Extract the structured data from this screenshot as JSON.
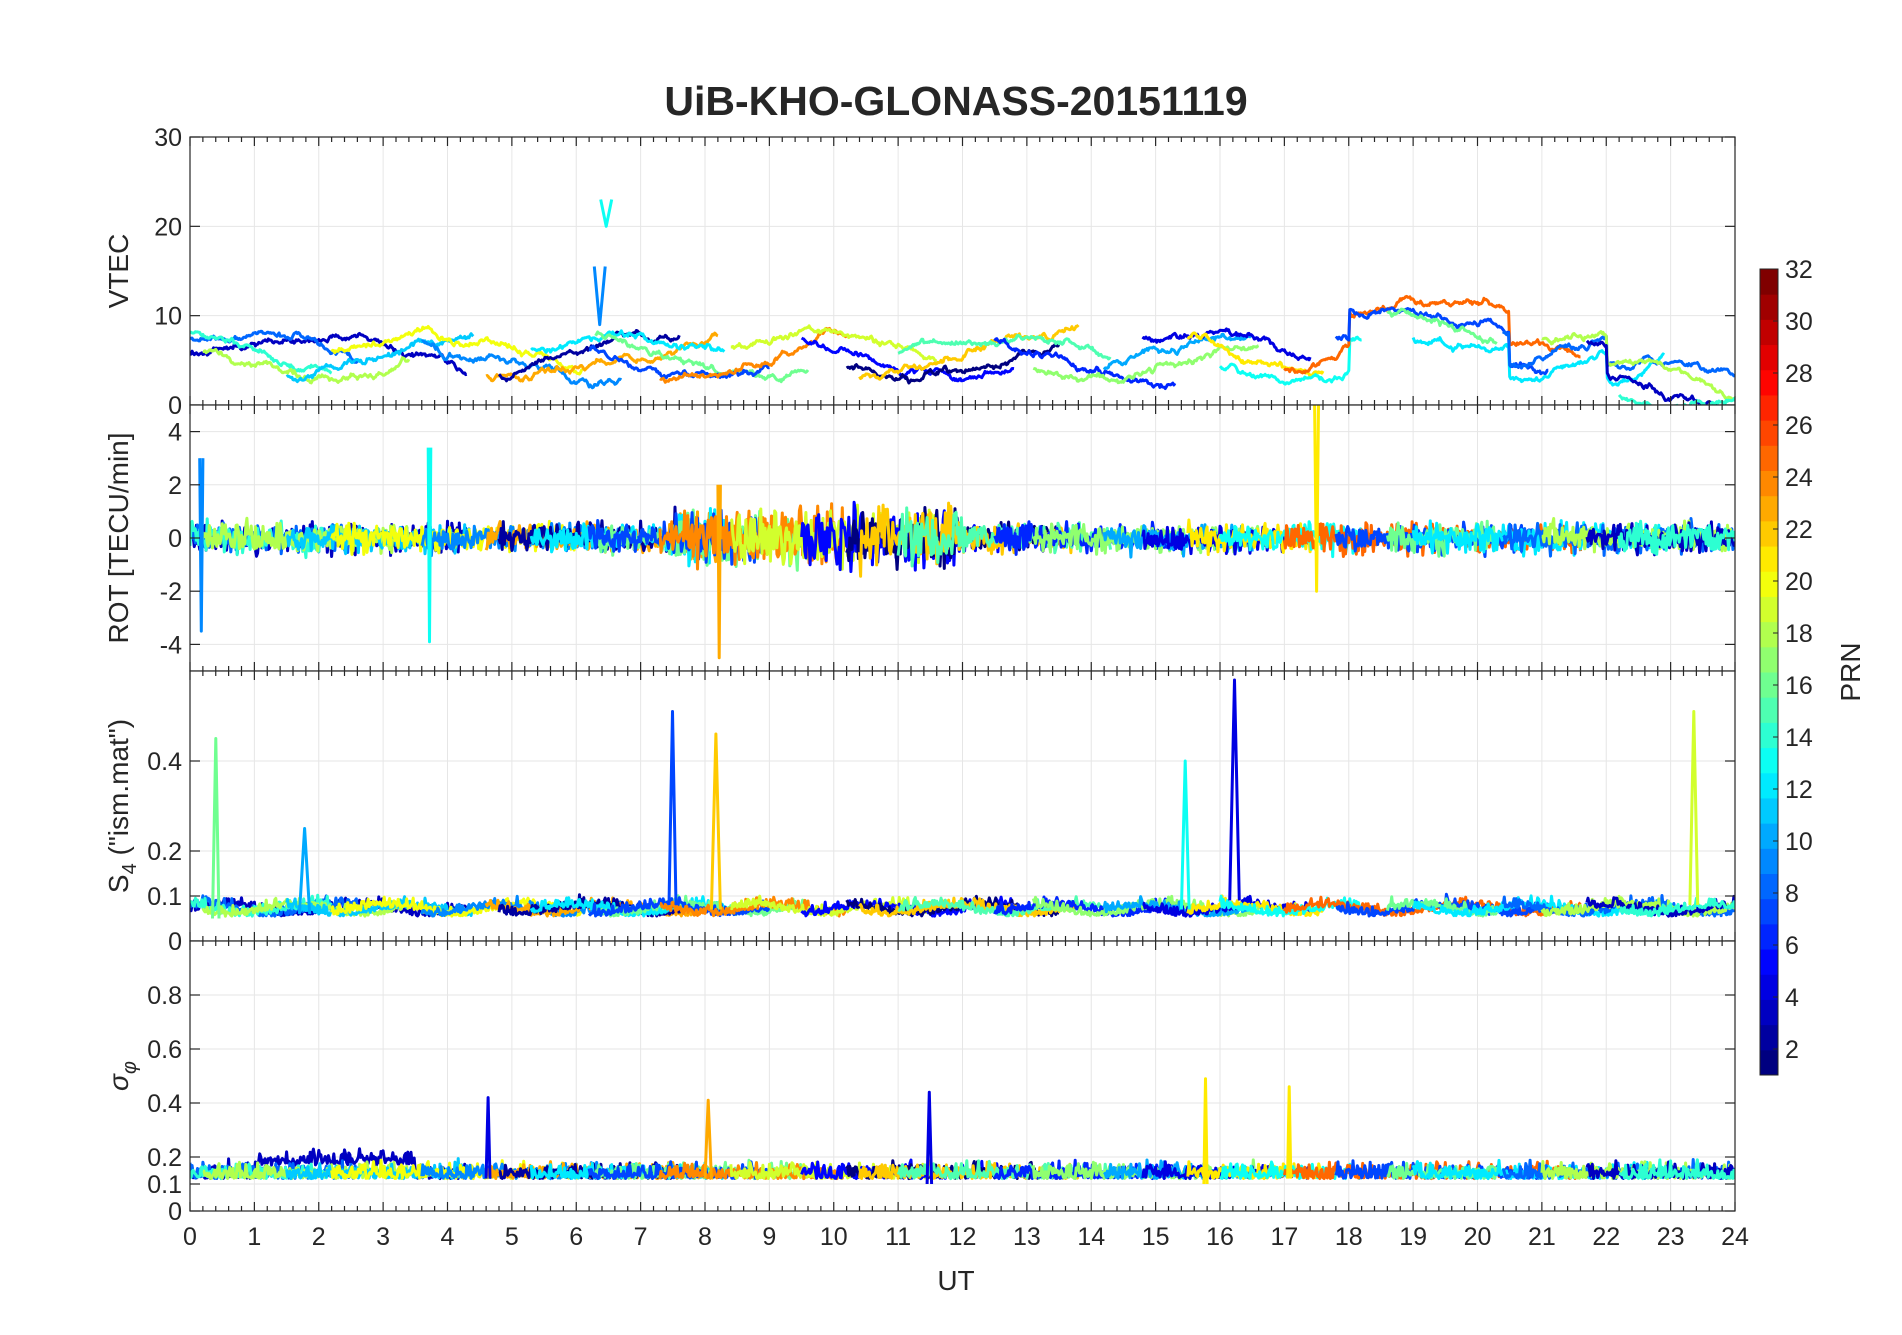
{
  "chart_data": {
    "type": "line",
    "title": "UiB-KHO-GLONASS-20151119",
    "xlabel": "UT",
    "xlim": [
      0,
      24
    ],
    "x_ticks": [
      "0",
      "1",
      "2",
      "3",
      "4",
      "5",
      "6",
      "7",
      "8",
      "9",
      "10",
      "11",
      "12",
      "13",
      "14",
      "15",
      "16",
      "17",
      "18",
      "19",
      "20",
      "21",
      "22",
      "23",
      "24"
    ],
    "grid": true,
    "colorbar": {
      "label": "PRN",
      "range": [
        1,
        32
      ],
      "ticks": [
        "2",
        "4",
        "6",
        "8",
        "10",
        "12",
        "14",
        "16",
        "18",
        "20",
        "22",
        "24",
        "26",
        "28",
        "30",
        "32"
      ],
      "colormap": "jet",
      "placement": "right"
    },
    "panels": [
      {
        "ylabel": "VTEC",
        "ylim": [
          0,
          30
        ],
        "y_ticks": [
          "0",
          "10",
          "20",
          "30"
        ],
        "series_summary": "Per-satellite VTEC traces mostly between 2 and 12; spike near UT 6.4 reaching ~23; values rise to ~12 near UT 19 and fall to ~1–4 after UT 22."
      },
      {
        "ylabel": "ROT [TECU/min]",
        "ylim": [
          -5,
          5
        ],
        "y_ticks": [
          "-4",
          "-2",
          "0",
          "2",
          "4"
        ],
        "series_summary": "Rate of TEC mostly within ±2 TECU/min; excursions to -4.5 near UT 8.2, -3.9 near UT 3.7, +5 near UT 17.5."
      },
      {
        "ylabel_main": "S",
        "ylabel_sub": "4",
        "ylabel_rest": " (\"ism.mat\")",
        "ylim": [
          0,
          0.6
        ],
        "y_ticks": [
          "0",
          "0.1",
          "0.2",
          "0.4"
        ],
        "series_summary": "S4 mostly 0.04–0.12; peaks ~0.45 at UT 0.4, ~0.5 at UT 7.5, ~0.46 at UT 8.2, ~0.58 at UT 16.3, ~0.51 at UT 23.4."
      },
      {
        "ylabel_main": "σ",
        "ylabel_sub": "φ",
        "ylim": [
          0,
          1
        ],
        "y_ticks": [
          "0",
          "0.1",
          "0.2",
          "0.4",
          "0.6",
          "0.8"
        ],
        "series_summary": "Phase scintillation index mostly 0.07–0.25; peaks ~0.44 at UT 11.5, ~0.49 at UT 15.8, ~0.46 at UT 17.1."
      }
    ]
  }
}
